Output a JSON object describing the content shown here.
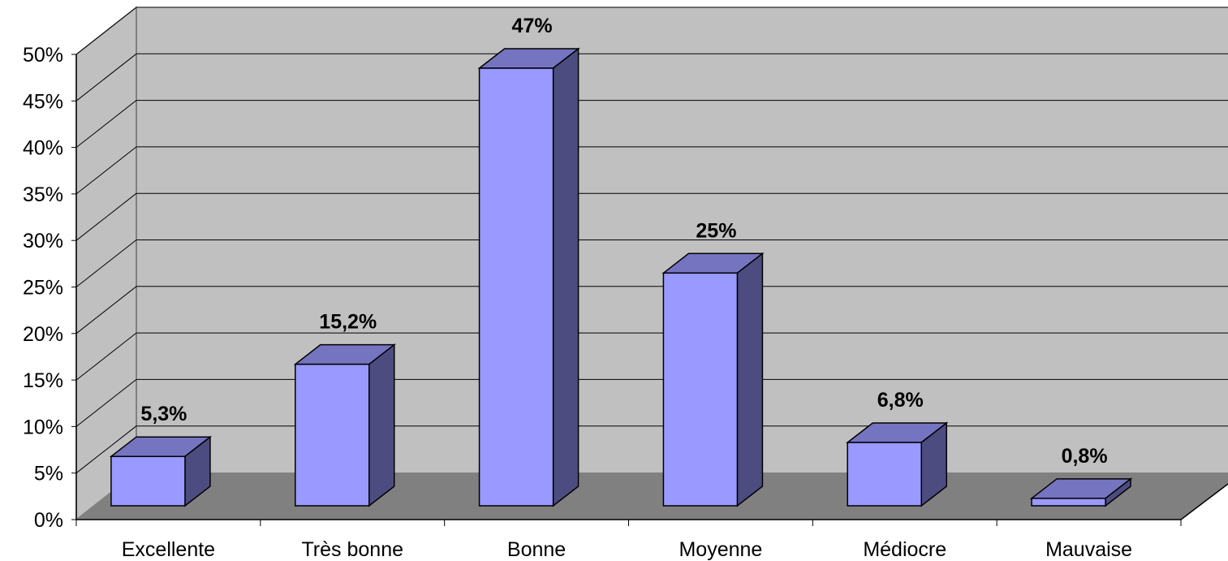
{
  "chart_data": {
    "type": "bar",
    "style": "3d-column",
    "categories": [
      "Excellente",
      "Très bonne",
      "Bonne",
      "Moyenne",
      "Médiocre",
      "Mauvaise"
    ],
    "values": [
      5.3,
      15.2,
      47,
      25,
      6.8,
      0.8
    ],
    "data_labels": [
      "5,3%",
      "15,2%",
      "47%",
      "25%",
      "6,8%",
      "0,8%"
    ],
    "y_ticks": [
      "0%",
      "5%",
      "10%",
      "15%",
      "20%",
      "25%",
      "30%",
      "35%",
      "40%",
      "45%",
      "50%"
    ],
    "ylim": [
      0,
      50
    ],
    "title": "",
    "xlabel": "",
    "ylabel": "",
    "grid": true,
    "legend": "none",
    "colors": {
      "wall": "#c0c0c0",
      "floor": "#808080",
      "bar_front": "#9999ff",
      "bar_top": "#7474c0",
      "bar_side": "#4c4c80",
      "gridline": "#000000"
    }
  }
}
